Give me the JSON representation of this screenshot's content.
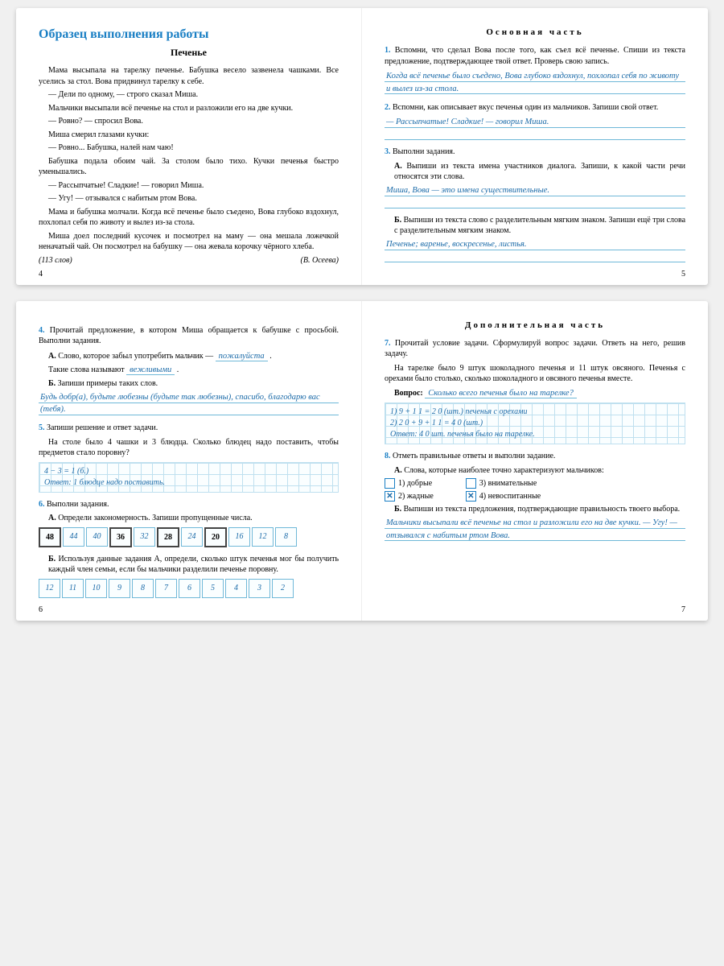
{
  "spread1": {
    "left": {
      "title": "Образец выполнения работы",
      "storyTitle": "Печенье",
      "paragraphs": [
        "Мама высыпала на тарелку печенье. Бабушка весело зазвенела чашками. Все уселись за стол. Вова придвинул тарелку к себе.",
        "— Дели по одному, — строго сказал Миша.",
        "Мальчики высыпали всё печенье на стол и разложили его на две кучки.",
        "— Ровно? — спросил Вова.",
        "Миша смерил глазами кучки:",
        "— Ровно... Бабушка, налей нам чаю!",
        "Бабушка подала обоим чай. За столом было тихо. Кучки печенья быстро уменьшались.",
        "— Рассыпчатые! Сладкие! — говорил Миша.",
        "— Угу! — отзывался с набитым ртом Вова.",
        "Мама и бабушка молчали. Когда всё печенье было съедено, Вова глубоко вздохнул, похлопал себя по животу и вылез из-за стола.",
        "Миша доел последний кусочек и посмотрел на маму — она мешала ложечкой неначатый чай. Он посмотрел на бабушку — она жевала корочку чёрного хлеба."
      ],
      "wordCount": "(113 слов)",
      "author": "(В. Осеева)",
      "pageNum": "4"
    },
    "right": {
      "sectionTitle": "Основная часть",
      "t1": {
        "num": "1.",
        "text": "Вспомни, что сделал Вова после того, как съел всё печенье. Спиши из текста предложение, подтверждающее твой ответ. Проверь свою запись.",
        "answer": "Когда всё печенье было съедено, Вова глубоко вздохнул, похлопал себя по животу и вылез из-за стола."
      },
      "t2": {
        "num": "2.",
        "text": "Вспомни, как описывает вкус печенья один из мальчиков. Запиши свой ответ.",
        "answer": "— Рассыпчатые! Сладкие! — говорил Миша."
      },
      "t3": {
        "num": "3.",
        "text": "Выполни задания.",
        "A": {
          "label": "А.",
          "text": "Выпиши из текста имена участников диалога. Запиши, к какой части речи относятся эти слова.",
          "answer": "Миша, Вова — это имена существительные."
        },
        "B": {
          "label": "Б.",
          "text": "Выпиши из текста слово с разделительным мягким знаком. Запиши ещё три слова с разделительным мягким знаком.",
          "answer": "Печенье; варенье, воскресенье, листья."
        }
      },
      "pageNum": "5"
    }
  },
  "spread2": {
    "left": {
      "t4": {
        "num": "4.",
        "text": "Прочитай предложение, в котором Миша обращается к бабушке с просьбой. Выполни задания.",
        "A": {
          "label": "А.",
          "text1": "Слово, которое забыл употребить мальчик —",
          "blank1": "пожалуйста",
          "text2": "Такие слова называют",
          "blank2": "вежливыми"
        },
        "B": {
          "label": "Б.",
          "text": "Запиши примеры таких слов.",
          "answer": "Будь добр(а), будьте любезны (будьте так любезны), спасибо, благодарю вас (тебя)."
        }
      },
      "t5": {
        "num": "5.",
        "text": "Запиши решение и ответ задачи.",
        "problem": "На столе было 4 чашки и 3 блюдца. Сколько блюдец надо поставить, чтобы предметов стало поровну?",
        "answer": "4 − 3 = 1 (б.)\nОтвет: 1 блюдце надо поставить."
      },
      "t6": {
        "num": "6.",
        "text": "Выполни задания.",
        "A": {
          "label": "А.",
          "text": "Определи закономерность. Запиши пропущенные числа.",
          "seq": [
            {
              "v": "48",
              "bold": true
            },
            {
              "v": "44",
              "hand": true
            },
            {
              "v": "40",
              "hand": true
            },
            {
              "v": "36",
              "bold": true
            },
            {
              "v": "32",
              "hand": true
            },
            {
              "v": "28",
              "bold": true
            },
            {
              "v": "24",
              "hand": true
            },
            {
              "v": "20",
              "bold": true
            },
            {
              "v": "16",
              "hand": true
            },
            {
              "v": "12",
              "hand": true
            },
            {
              "v": "8",
              "hand": true
            }
          ]
        },
        "B": {
          "label": "Б.",
          "text": "Используя данные задания А, определи, сколько штук печенья мог бы получить каждый член семьи, если бы мальчики разделили печенье поровну.",
          "seq": [
            {
              "v": "12",
              "hand": true
            },
            {
              "v": "11",
              "hand": true
            },
            {
              "v": "10",
              "hand": true
            },
            {
              "v": "9",
              "hand": true
            },
            {
              "v": "8",
              "hand": true
            },
            {
              "v": "7",
              "hand": true
            },
            {
              "v": "6",
              "hand": true
            },
            {
              "v": "5",
              "hand": true
            },
            {
              "v": "4",
              "hand": true
            },
            {
              "v": "3",
              "hand": true
            },
            {
              "v": "2",
              "hand": true
            }
          ]
        }
      },
      "pageNum": "6"
    },
    "right": {
      "sectionTitle": "Дополнительная часть",
      "t7": {
        "num": "7.",
        "text": "Прочитай условие задачи. Сформулируй вопрос задачи. Ответь на него, решив задачу.",
        "problem": "На тарелке было 9 штук шоколадного печенья и 11 штук овсяного. Печенья с орехами было столько, сколько шоколадного и овсяного печенья вместе.",
        "qLabel": "Вопрос:",
        "qAnswer": "Сколько всего печенья было на тарелке?",
        "solution": "1) 9 + 1 1 = 2 0 (шт.) печенья с орехами\n2) 2 0 + 9 + 1 1 = 4 0 (шт.)\nОтвет: 4 0 шт. печенья было на тарелке."
      },
      "t8": {
        "num": "8.",
        "text": "Отметь правильные ответы и выполни задание.",
        "A": {
          "label": "А.",
          "text": "Слова, которые наиболее точно характеризуют мальчиков:",
          "opts": [
            {
              "n": "1)",
              "label": "добрые",
              "checked": false
            },
            {
              "n": "2)",
              "label": "жадные",
              "checked": true
            },
            {
              "n": "3)",
              "label": "внимательные",
              "checked": false
            },
            {
              "n": "4)",
              "label": "невоспитанные",
              "checked": true
            }
          ]
        },
        "B": {
          "label": "Б.",
          "text": "Выпиши из текста предложения, подтверждающие правильность твоего выбора.",
          "answer": "Мальчики высыпали всё печенье на стол и разложили его на две кучки. — Угу! — отзывался с набитым ртом Вова."
        }
      },
      "pageNum": "7"
    }
  }
}
